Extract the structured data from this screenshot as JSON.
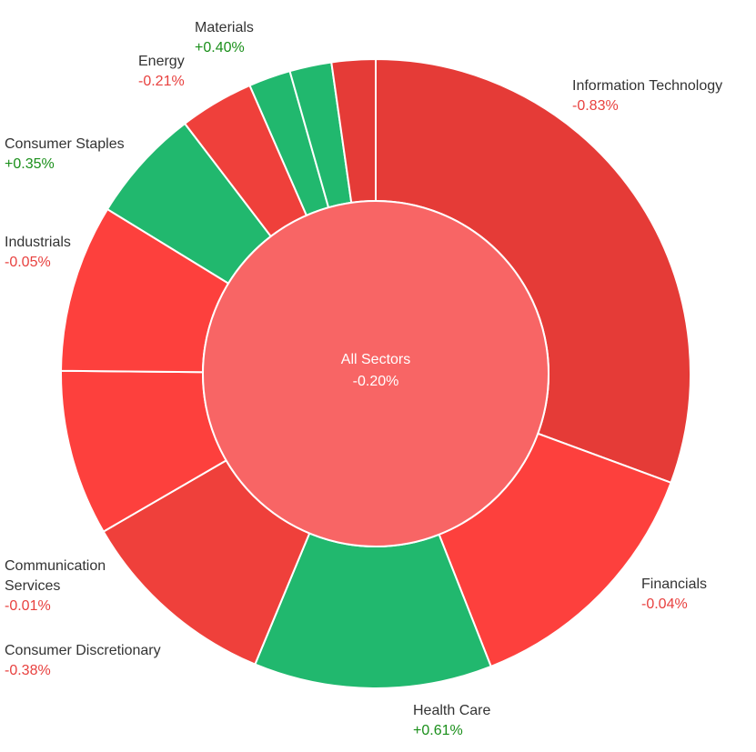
{
  "chart_data": {
    "type": "sunburst",
    "center": {
      "label": "All Sectors",
      "change": "-0.20%",
      "color": "#f86565"
    },
    "colors": {
      "positive": "#21b86e",
      "negative_strong": "#e53b37",
      "negative": "#fd403d",
      "text_positive": "#1a8f1a",
      "text_negative": "#e8413f"
    },
    "sectors": [
      {
        "name": "Information Technology",
        "weight": 31.3,
        "change": "-0.83%",
        "color": "#e53b37"
      },
      {
        "name": "Financials",
        "weight": 13.7,
        "change": "-0.04%",
        "color": "#fd403d"
      },
      {
        "name": "Health Care",
        "weight": 12.5,
        "change": "+0.61%",
        "color": "#21b86e"
      },
      {
        "name": "Consumer Discretionary",
        "weight": 10.6,
        "change": "-0.38%",
        "color": "#ef403b"
      },
      {
        "name": "Communication Services",
        "weight": 8.7,
        "change": "-0.01%",
        "color": "#fd403d"
      },
      {
        "name": "Industrials",
        "weight": 8.8,
        "change": "-0.05%",
        "color": "#fd403d"
      },
      {
        "name": "Consumer Staples",
        "weight": 6.0,
        "change": "+0.35%",
        "color": "#21b86e"
      },
      {
        "name": "Energy",
        "weight": 3.9,
        "change": "-0.21%",
        "color": "#ef403b"
      },
      {
        "name": "",
        "weight": 2.2,
        "change": "",
        "color": "#21b86e"
      },
      {
        "name": "Materials",
        "weight": 2.2,
        "change": "+0.40%",
        "color": "#21b86e"
      },
      {
        "name": "",
        "weight": 2.3,
        "change": "",
        "color": "#e53b37"
      }
    ]
  }
}
